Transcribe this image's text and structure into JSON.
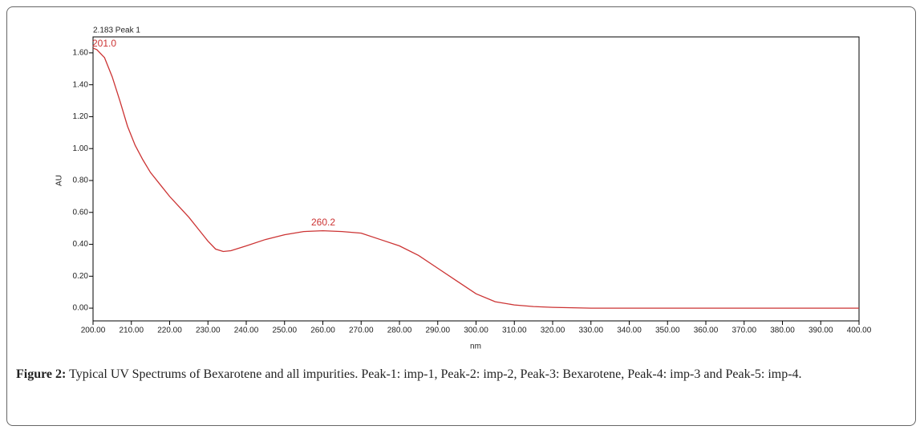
{
  "chart_data": {
    "type": "line",
    "header": "2.183 Peak 1",
    "x_label": "nm",
    "y_label": "AU",
    "peak_labels": [
      "201.0",
      "260.2"
    ],
    "color": "#cc3333",
    "x": [
      200,
      201,
      203,
      205,
      207,
      209,
      211,
      213,
      215,
      218,
      220,
      225,
      228,
      230,
      232,
      234,
      236,
      240,
      245,
      250,
      255,
      260,
      265,
      270,
      275,
      280,
      285,
      290,
      295,
      300,
      305,
      310,
      315,
      320,
      330,
      400
    ],
    "y": [
      1.63,
      1.62,
      1.57,
      1.45,
      1.3,
      1.14,
      1.02,
      0.93,
      0.85,
      0.76,
      0.7,
      0.57,
      0.48,
      0.42,
      0.37,
      0.355,
      0.36,
      0.39,
      0.43,
      0.46,
      0.48,
      0.485,
      0.48,
      0.47,
      0.43,
      0.39,
      0.33,
      0.25,
      0.17,
      0.09,
      0.04,
      0.02,
      0.01,
      0.005,
      0,
      0
    ],
    "xlim": [
      200,
      400
    ],
    "ylim": [
      -0.08,
      1.7
    ],
    "xticks": [
      {
        "value": 200,
        "label": "200.00"
      },
      {
        "value": 210,
        "label": "210.00"
      },
      {
        "value": 220,
        "label": "220.00"
      },
      {
        "value": 230,
        "label": "230.00"
      },
      {
        "value": 240,
        "label": "240.00"
      },
      {
        "value": 250,
        "label": "250.00"
      },
      {
        "value": 260,
        "label": "260.00"
      },
      {
        "value": 270,
        "label": "270.00"
      },
      {
        "value": 280,
        "label": "280.00"
      },
      {
        "value": 290,
        "label": "290.00"
      },
      {
        "value": 300,
        "label": "300.00"
      },
      {
        "value": 310,
        "label": "310.00"
      },
      {
        "value": 320,
        "label": "320.00"
      },
      {
        "value": 330,
        "label": "330.00"
      },
      {
        "value": 340,
        "label": "340.00"
      },
      {
        "value": 350,
        "label": "350.00"
      },
      {
        "value": 360,
        "label": "360.00"
      },
      {
        "value": 370,
        "label": "370.00"
      },
      {
        "value": 380,
        "label": "380.00"
      },
      {
        "value": 390,
        "label": "390.00"
      },
      {
        "value": 400,
        "label": "400.00"
      }
    ],
    "yticks": [
      {
        "value": 0,
        "label": "0.00"
      },
      {
        "value": 0.2,
        "label": "0.20"
      },
      {
        "value": 0.4,
        "label": "0.40"
      },
      {
        "value": 0.6,
        "label": "0.60"
      },
      {
        "value": 0.8,
        "label": "0.80"
      },
      {
        "value": 1.0,
        "label": "1.00"
      },
      {
        "value": 1.2,
        "label": "1.20"
      },
      {
        "value": 1.4,
        "label": "1.40"
      },
      {
        "value": 1.6,
        "label": "1.60"
      }
    ]
  },
  "caption": {
    "label": "Figure 2:",
    "text": "Typical UV Spectrums of Bexarotene and all impurities. Peak-1: imp-1, Peak-2: imp-2, Peak-3: Bexarotene, Peak-4: imp-3 and Peak-5: imp-4."
  }
}
